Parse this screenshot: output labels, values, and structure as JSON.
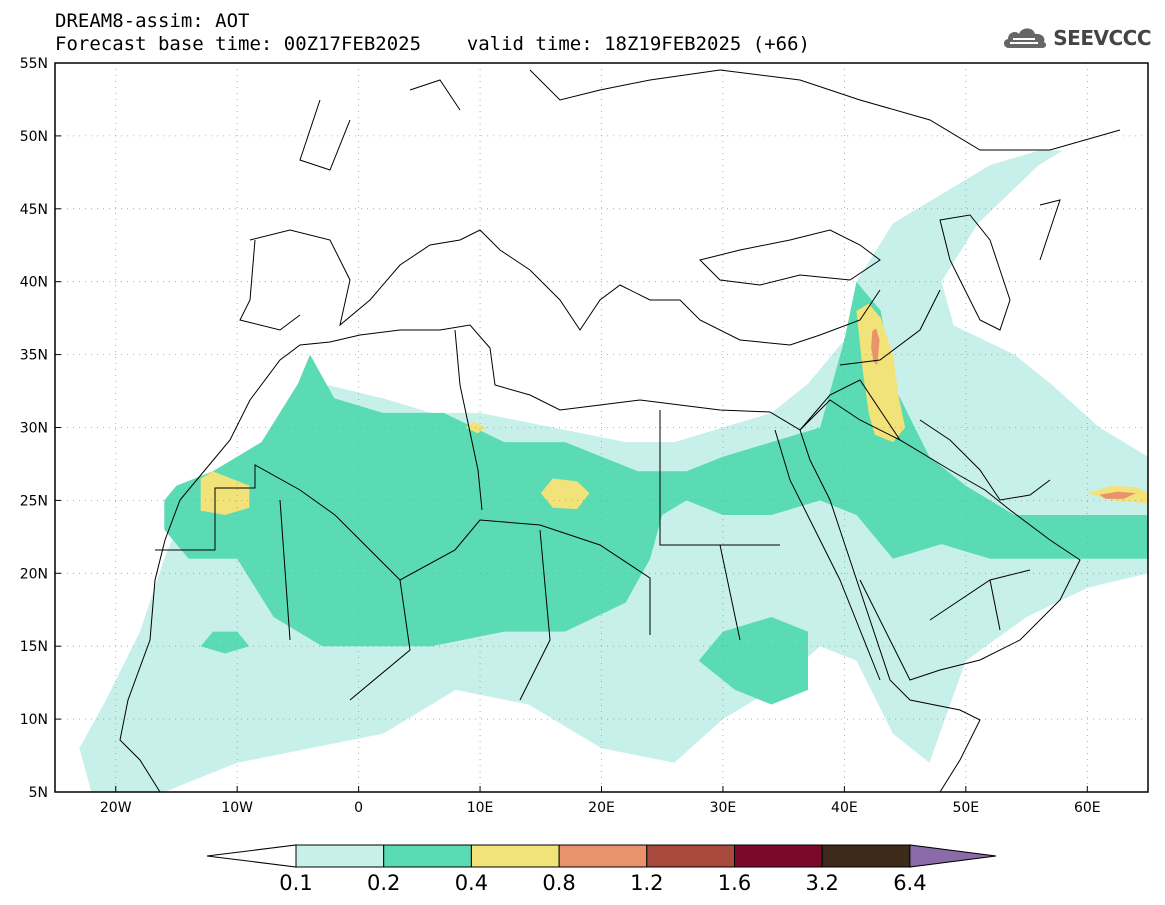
{
  "header": {
    "line1": "DREAM8-assim: AOT",
    "line2": "Forecast base time: 00Z17FEB2025    valid time: 18Z19FEB2025 (+66)",
    "logo_text": "SEEVCCC"
  },
  "map": {
    "lon_range": [
      -25,
      65
    ],
    "lat_range": [
      5,
      55
    ],
    "lat_ticks": [
      {
        "value": 55,
        "label": "55N"
      },
      {
        "value": 50,
        "label": "50N"
      },
      {
        "value": 45,
        "label": "45N"
      },
      {
        "value": 40,
        "label": "40N"
      },
      {
        "value": 35,
        "label": "35N"
      },
      {
        "value": 30,
        "label": "30N"
      },
      {
        "value": 25,
        "label": "25N"
      },
      {
        "value": 20,
        "label": "20N"
      },
      {
        "value": 15,
        "label": "15N"
      },
      {
        "value": 10,
        "label": "10N"
      },
      {
        "value": 5,
        "label": "5N"
      }
    ],
    "lon_ticks": [
      {
        "value": -20,
        "label": "20W"
      },
      {
        "value": -10,
        "label": "10W"
      },
      {
        "value": 0,
        "label": "0"
      },
      {
        "value": 10,
        "label": "10E"
      },
      {
        "value": 20,
        "label": "20E"
      },
      {
        "value": 30,
        "label": "30E"
      },
      {
        "value": 40,
        "label": "40E"
      },
      {
        "value": 50,
        "label": "50E"
      },
      {
        "value": 60,
        "label": "60E"
      }
    ],
    "gridlines": true
  },
  "colorbar": {
    "labels": [
      "0.1",
      "0.2",
      "0.4",
      "0.8",
      "1.2",
      "1.6",
      "3.2",
      "6.4"
    ],
    "colors": [
      "#ffffff",
      "#c8f0ea",
      "#5bdbb4",
      "#f2e27a",
      "#e8936b",
      "#a84a3e",
      "#7a0a2a",
      "#3e2a1a",
      "#8a6aa8"
    ]
  },
  "chart_data": {
    "type": "heatmap",
    "title": "DREAM8-assim: AOT",
    "field": "AOT",
    "levels": [
      0.1,
      0.2,
      0.4,
      0.8,
      1.2,
      1.6,
      3.2,
      6.4
    ],
    "xlim": [
      -25,
      65
    ],
    "ylim": [
      5,
      55
    ],
    "regions": [
      {
        "level": 0.1,
        "polygon": [
          [
            -23,
            8
          ],
          [
            -21,
            11
          ],
          [
            -18,
            16
          ],
          [
            -16,
            21
          ],
          [
            -14,
            25
          ],
          [
            -10,
            28
          ],
          [
            -6,
            30
          ],
          [
            -3,
            33
          ],
          [
            2,
            32
          ],
          [
            6,
            31
          ],
          [
            10,
            31
          ],
          [
            16,
            30
          ],
          [
            22,
            29
          ],
          [
            26,
            29
          ],
          [
            30,
            30
          ],
          [
            34,
            31
          ],
          [
            37,
            33
          ],
          [
            40,
            36
          ],
          [
            41,
            40
          ],
          [
            44,
            44
          ],
          [
            48,
            46
          ],
          [
            52,
            48
          ],
          [
            56,
            49
          ],
          [
            58,
            49
          ],
          [
            56,
            48
          ],
          [
            51,
            44
          ],
          [
            48,
            40
          ],
          [
            49,
            37
          ],
          [
            54,
            35
          ],
          [
            57,
            33
          ],
          [
            61,
            30
          ],
          [
            65,
            28
          ],
          [
            65,
            20
          ],
          [
            60,
            19
          ],
          [
            55,
            17
          ],
          [
            50,
            14
          ],
          [
            47,
            7
          ],
          [
            44,
            9
          ],
          [
            41,
            14
          ],
          [
            38,
            15
          ],
          [
            34,
            12
          ],
          [
            30,
            10
          ],
          [
            26,
            7
          ],
          [
            20,
            8
          ],
          [
            14,
            11
          ],
          [
            8,
            12
          ],
          [
            2,
            9
          ],
          [
            -4,
            8
          ],
          [
            -10,
            7
          ],
          [
            -16,
            5
          ],
          [
            -22,
            5
          ]
        ]
      },
      {
        "level": 0.2,
        "polygon": [
          [
            -16,
            25
          ],
          [
            -15,
            26
          ],
          [
            -12,
            27
          ],
          [
            -8,
            29
          ],
          [
            -5,
            33
          ],
          [
            -4,
            35
          ],
          [
            -2,
            32
          ],
          [
            2,
            31
          ],
          [
            7,
            31
          ],
          [
            12,
            29
          ],
          [
            17,
            29
          ],
          [
            23,
            27
          ],
          [
            27,
            27
          ],
          [
            30,
            28
          ],
          [
            34,
            29
          ],
          [
            38,
            30
          ],
          [
            40,
            36
          ],
          [
            41,
            40
          ],
          [
            43,
            38
          ],
          [
            44,
            33
          ],
          [
            47,
            28
          ],
          [
            50,
            26
          ],
          [
            54,
            24
          ],
          [
            58,
            24
          ],
          [
            65,
            24
          ],
          [
            65,
            21
          ],
          [
            57,
            21
          ],
          [
            52,
            21
          ],
          [
            48,
            22
          ],
          [
            44,
            21
          ],
          [
            41,
            24
          ],
          [
            38,
            25
          ],
          [
            34,
            24
          ],
          [
            30,
            24
          ],
          [
            27,
            25
          ],
          [
            25,
            24
          ],
          [
            24,
            21
          ],
          [
            22,
            18
          ],
          [
            17,
            16
          ],
          [
            12,
            16
          ],
          [
            6,
            15
          ],
          [
            2,
            15
          ],
          [
            -3,
            15
          ],
          [
            -7,
            17
          ],
          [
            -10,
            21
          ],
          [
            -14,
            21
          ],
          [
            -16,
            23
          ]
        ]
      },
      {
        "level": 0.2,
        "polygon": [
          [
            -13,
            15
          ],
          [
            -12,
            16
          ],
          [
            -10,
            16
          ],
          [
            -9,
            15
          ],
          [
            -11,
            14.5
          ]
        ]
      },
      {
        "level": 0.2,
        "polygon": [
          [
            28,
            14
          ],
          [
            30,
            16
          ],
          [
            34,
            17
          ],
          [
            37,
            16
          ],
          [
            37,
            12
          ],
          [
            34,
            11
          ],
          [
            31,
            12
          ]
        ]
      },
      {
        "level": 0.4,
        "polygon": [
          [
            -13,
            26.5
          ],
          [
            -12,
            27
          ],
          [
            -9,
            26
          ],
          [
            -9,
            24.5
          ],
          [
            -11,
            24
          ],
          [
            -13,
            24.3
          ]
        ]
      },
      {
        "level": 0.4,
        "polygon": [
          [
            15,
            25.5
          ],
          [
            16,
            26.5
          ],
          [
            18,
            26.3
          ],
          [
            19,
            25.5
          ],
          [
            18,
            24.4
          ],
          [
            16,
            24.5
          ]
        ]
      },
      {
        "level": 0.4,
        "polygon": [
          [
            8.8,
            30
          ],
          [
            9.5,
            30.4
          ],
          [
            10.5,
            30
          ],
          [
            9.8,
            29.6
          ]
        ]
      },
      {
        "level": 0.4,
        "polygon": [
          [
            41,
            38
          ],
          [
            42,
            38.5
          ],
          [
            43,
            37.5
          ],
          [
            44,
            35
          ],
          [
            44.5,
            32
          ],
          [
            45,
            30
          ],
          [
            44,
            29
          ],
          [
            42.5,
            29.5
          ],
          [
            42,
            31
          ],
          [
            41.5,
            34
          ]
        ]
      },
      {
        "level": 0.4,
        "polygon": [
          [
            60,
            25.5
          ],
          [
            62,
            26
          ],
          [
            64,
            25.9
          ],
          [
            65,
            25.5
          ],
          [
            65,
            24.8
          ],
          [
            62,
            25
          ]
        ]
      },
      {
        "level": 0.8,
        "polygon": [
          [
            42.3,
            36.6
          ],
          [
            42.6,
            36.8
          ],
          [
            42.9,
            36
          ],
          [
            42.7,
            34.3
          ],
          [
            42.4,
            34.5
          ],
          [
            42.2,
            35.5
          ]
        ]
      },
      {
        "level": 0.8,
        "polygon": [
          [
            61,
            25.4
          ],
          [
            62.5,
            25.6
          ],
          [
            64,
            25.5
          ],
          [
            63,
            25.1
          ],
          [
            61.5,
            25.1
          ]
        ]
      }
    ]
  }
}
